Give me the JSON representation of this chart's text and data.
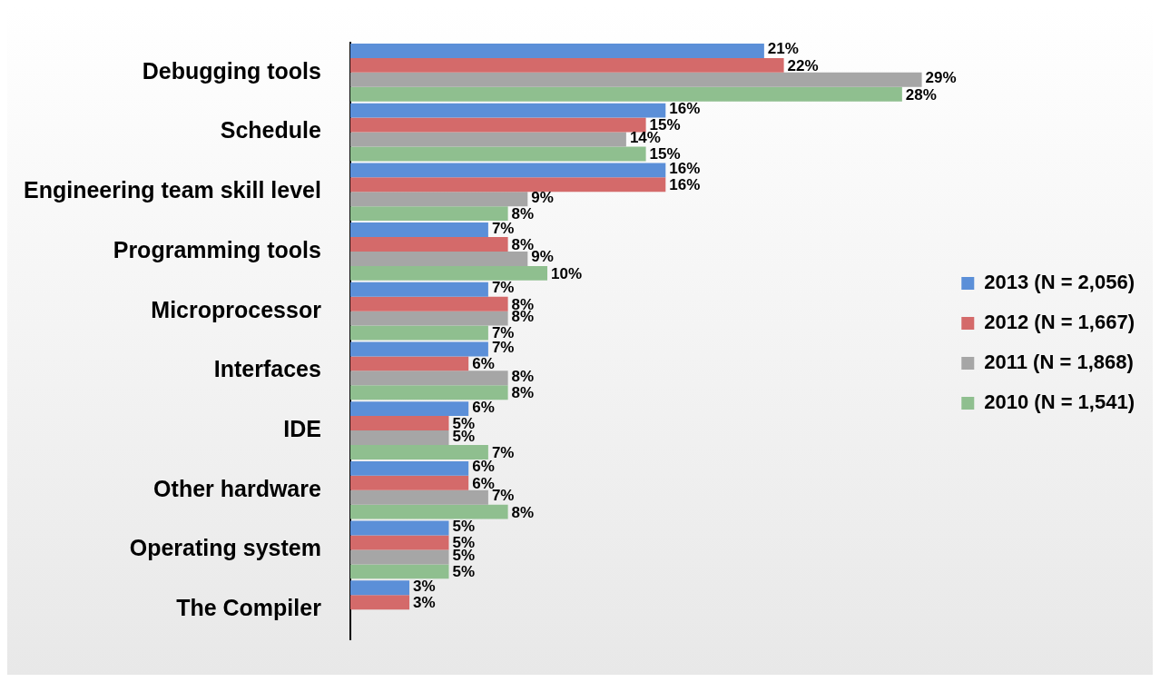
{
  "chart_data": {
    "type": "bar",
    "orientation": "horizontal",
    "categories": [
      "Debugging tools",
      "Schedule",
      "Engineering team skill level",
      "Programming tools",
      "Microprocessor",
      "Interfaces",
      "IDE",
      "Other hardware",
      "Operating system",
      "The Compiler"
    ],
    "series": [
      {
        "name": "2013 (N = 2,056)",
        "color": "#5b8fd8",
        "values": [
          21,
          16,
          16,
          7,
          7,
          7,
          6,
          6,
          5,
          3
        ],
        "value_labels": [
          "21%",
          "16%",
          "16%",
          "7%",
          "7%",
          "7%",
          "6%",
          "6%",
          "5%",
          "3%"
        ]
      },
      {
        "name": "2012 (N = 1,667)",
        "color": "#d46a6a",
        "values": [
          22,
          15,
          16,
          8,
          8,
          6,
          5,
          6,
          5,
          3
        ],
        "value_labels": [
          "22%",
          "15%",
          "16%",
          "8%",
          "8%",
          "6%",
          "5%",
          "6%",
          "5%",
          "3%"
        ]
      },
      {
        "name": "2011 (N = 1,868)",
        "color": "#a6a6a6",
        "values": [
          29,
          14,
          9,
          9,
          8,
          8,
          5,
          7,
          5,
          null
        ],
        "value_labels": [
          "29%",
          "14%",
          "9%",
          "9%",
          "8%",
          "8%",
          "5%",
          "7%",
          "5%",
          null
        ]
      },
      {
        "name": "2010 (N = 1,541)",
        "color": "#8fbf8f",
        "values": [
          28,
          15,
          8,
          10,
          7,
          8,
          7,
          8,
          5,
          null
        ],
        "value_labels": [
          "28%",
          "15%",
          "8%",
          "10%",
          "7%",
          "8%",
          "7%",
          "8%",
          "5%",
          null
        ]
      }
    ],
    "tick_labels": "y",
    "legend": "right"
  }
}
